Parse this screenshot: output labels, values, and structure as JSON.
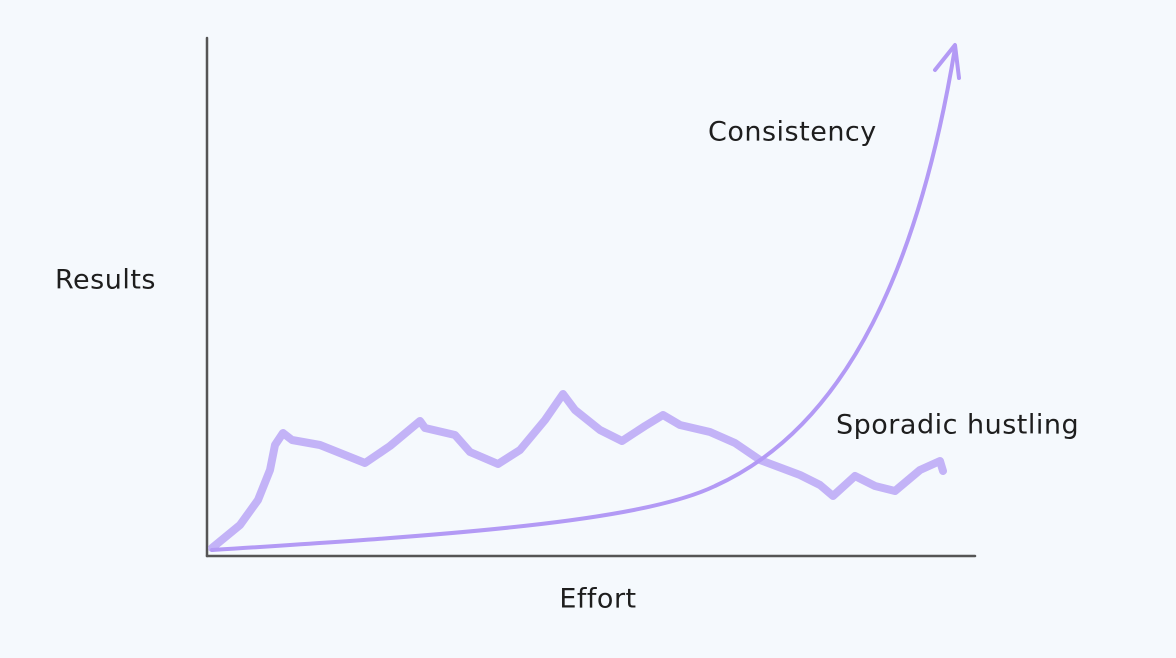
{
  "axes": {
    "y_label": "Results",
    "x_label": "Effort"
  },
  "curves": [
    {
      "label": "Consistency"
    },
    {
      "label": "Sporadic hustling"
    }
  ]
}
